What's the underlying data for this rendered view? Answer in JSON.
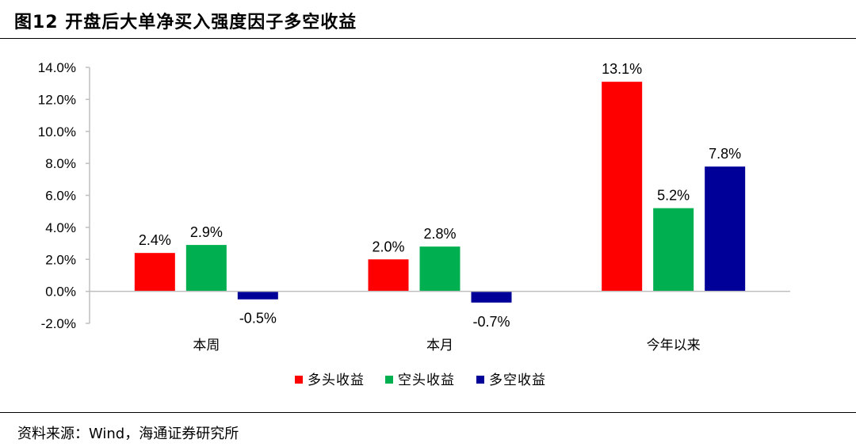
{
  "header": {
    "title": "图12 开盘后大单净买入强度因子多空收益"
  },
  "footer": {
    "source": "资料来源：Wind，海通证券研究所"
  },
  "chart_data": {
    "type": "bar",
    "categories": [
      "本周",
      "本月",
      "今年以来"
    ],
    "series": [
      {
        "name": "多头收益",
        "color": "#ff0000",
        "values": [
          2.4,
          2.0,
          13.1
        ],
        "labels": [
          "2.4%",
          "2.0%",
          "13.1%"
        ]
      },
      {
        "name": "空头收益",
        "color": "#00b050",
        "values": [
          2.9,
          2.8,
          5.2
        ],
        "labels": [
          "2.9%",
          "2.8%",
          "5.2%"
        ]
      },
      {
        "name": "多空收益",
        "color": "#000099",
        "values": [
          -0.5,
          -0.7,
          7.8
        ],
        "labels": [
          "-0.5%",
          "-0.7%",
          "7.8%"
        ]
      }
    ],
    "ylim": [
      -2.0,
      14.0
    ],
    "yticks": [
      -2.0,
      0.0,
      2.0,
      4.0,
      6.0,
      8.0,
      10.0,
      12.0,
      14.0
    ],
    "ytick_labels": [
      "-2.0%",
      "0.0%",
      "2.0%",
      "4.0%",
      "6.0%",
      "8.0%",
      "10.0%",
      "12.0%",
      "14.0%"
    ],
    "grid": false,
    "legend": "bottom-center"
  }
}
